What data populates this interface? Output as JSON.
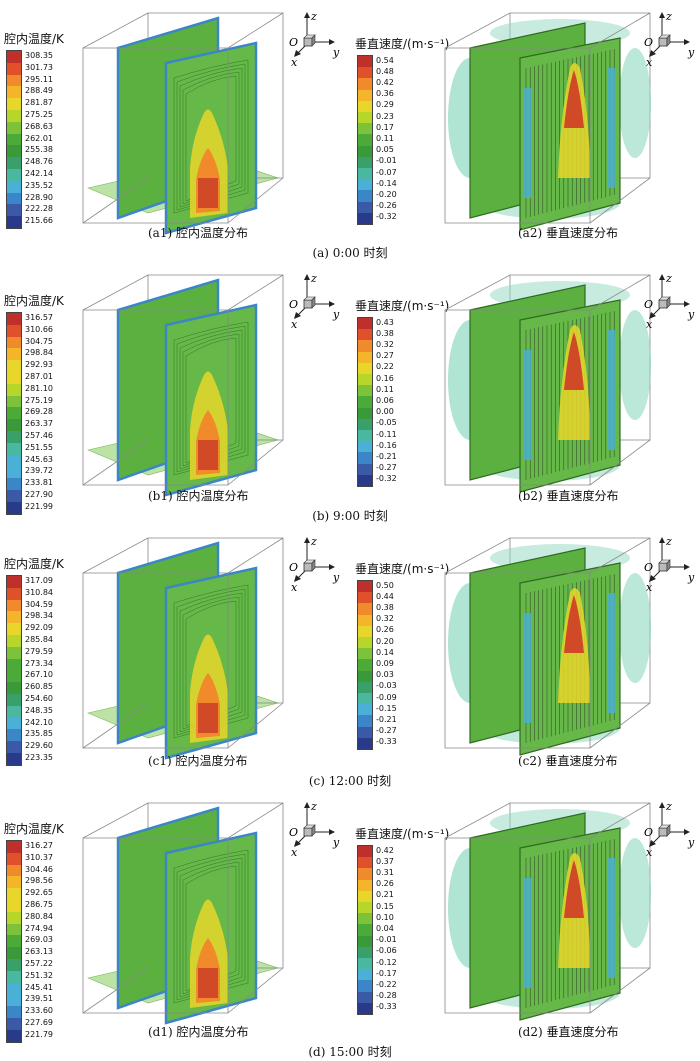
{
  "panels": [
    {
      "id": "a",
      "temp_legend": {
        "title": "腔内温度/K",
        "values": [
          "308.35",
          "301.73",
          "295.11",
          "288.49",
          "281.87",
          "275.25",
          "268.63",
          "262.01",
          "255.38",
          "248.76",
          "242.14",
          "235.52",
          "228.90",
          "222.28",
          "215.66"
        ]
      },
      "vel_legend": {
        "title": "垂直速度/(m·s⁻¹)",
        "values": [
          "0.54",
          "0.48",
          "0.42",
          "0.36",
          "0.29",
          "0.23",
          "0.17",
          "0.11",
          "0.05",
          "-0.01",
          "-0.07",
          "-0.14",
          "-0.20",
          "-0.26",
          "-0.32"
        ]
      },
      "caption_left": "(a1) 腔内温度分布",
      "caption_right": "(a2) 垂直速度分布",
      "time_caption": "(a) 0:00 时刻"
    },
    {
      "id": "b",
      "temp_legend": {
        "title": "腔内温度/K",
        "values": [
          "316.57",
          "310.66",
          "304.75",
          "298.84",
          "292.93",
          "287.01",
          "281.10",
          "275.19",
          "269.28",
          "263.37",
          "257.46",
          "251.55",
          "245.63",
          "239.72",
          "233.81",
          "227.90",
          "221.99"
        ]
      },
      "vel_legend": {
        "title": "垂直速度/(m·s⁻¹)",
        "values": [
          "0.43",
          "0.38",
          "0.32",
          "0.27",
          "0.22",
          "0.16",
          "0.11",
          "0.06",
          "0.00",
          "-0.05",
          "-0.11",
          "-0.16",
          "-0.21",
          "-0.27",
          "-0.32"
        ]
      },
      "caption_left": "(b1) 腔内温度分布",
      "caption_right": "(b2) 垂直速度分布",
      "time_caption": "(b) 9:00 时刻"
    },
    {
      "id": "c",
      "temp_legend": {
        "title": "腔内温度/K",
        "values": [
          "317.09",
          "310.84",
          "304.59",
          "298.34",
          "292.09",
          "285.84",
          "279.59",
          "273.34",
          "267.10",
          "260.85",
          "254.60",
          "248.35",
          "242.10",
          "235.85",
          "229.60",
          "223.35"
        ]
      },
      "vel_legend": {
        "title": "垂直速度/(m·s⁻¹)",
        "values": [
          "0.50",
          "0.44",
          "0.38",
          "0.32",
          "0.26",
          "0.20",
          "0.14",
          "0.09",
          "0.03",
          "-0.03",
          "-0.09",
          "-0.15",
          "-0.21",
          "-0.27",
          "-0.33"
        ]
      },
      "caption_left": "(c1) 腔内温度分布",
      "caption_right": "(c2) 垂直速度分布",
      "time_caption": "(c) 12:00 时刻"
    },
    {
      "id": "d",
      "temp_legend": {
        "title": "腔内温度/K",
        "values": [
          "316.27",
          "310.37",
          "304.46",
          "298.56",
          "292.65",
          "286.75",
          "280.84",
          "274.94",
          "269.03",
          "263.13",
          "257.22",
          "251.32",
          "245.41",
          "239.51",
          "233.60",
          "227.69",
          "221.79"
        ]
      },
      "vel_legend": {
        "title": "垂直速度/(m·s⁻¹)",
        "values": [
          "0.42",
          "0.37",
          "0.31",
          "0.26",
          "0.21",
          "0.15",
          "0.10",
          "0.04",
          "-0.01",
          "-0.06",
          "-0.12",
          "-0.17",
          "-0.22",
          "-0.28",
          "-0.33"
        ]
      },
      "caption_left": "(d1) 腔内温度分布",
      "caption_right": "(d2) 垂直速度分布",
      "time_caption": "(d) 15:00 时刻"
    }
  ],
  "axis_labels": {
    "z": "z",
    "o": "O",
    "x": "x",
    "y": "y"
  },
  "colors": {
    "ramp": [
      "#c0302a",
      "#e0502a",
      "#f08a2a",
      "#f5b52a",
      "#e8d62a",
      "#b8d62a",
      "#7cc23a",
      "#4caa38",
      "#3a9a3a",
      "#3aa06a",
      "#4ab8a0",
      "#4ab0d8",
      "#3a86c8",
      "#3a5aa8",
      "#2a3a8a"
    ],
    "iso_surface": "#8fd8c0",
    "slice_green": "#5cb040"
  }
}
